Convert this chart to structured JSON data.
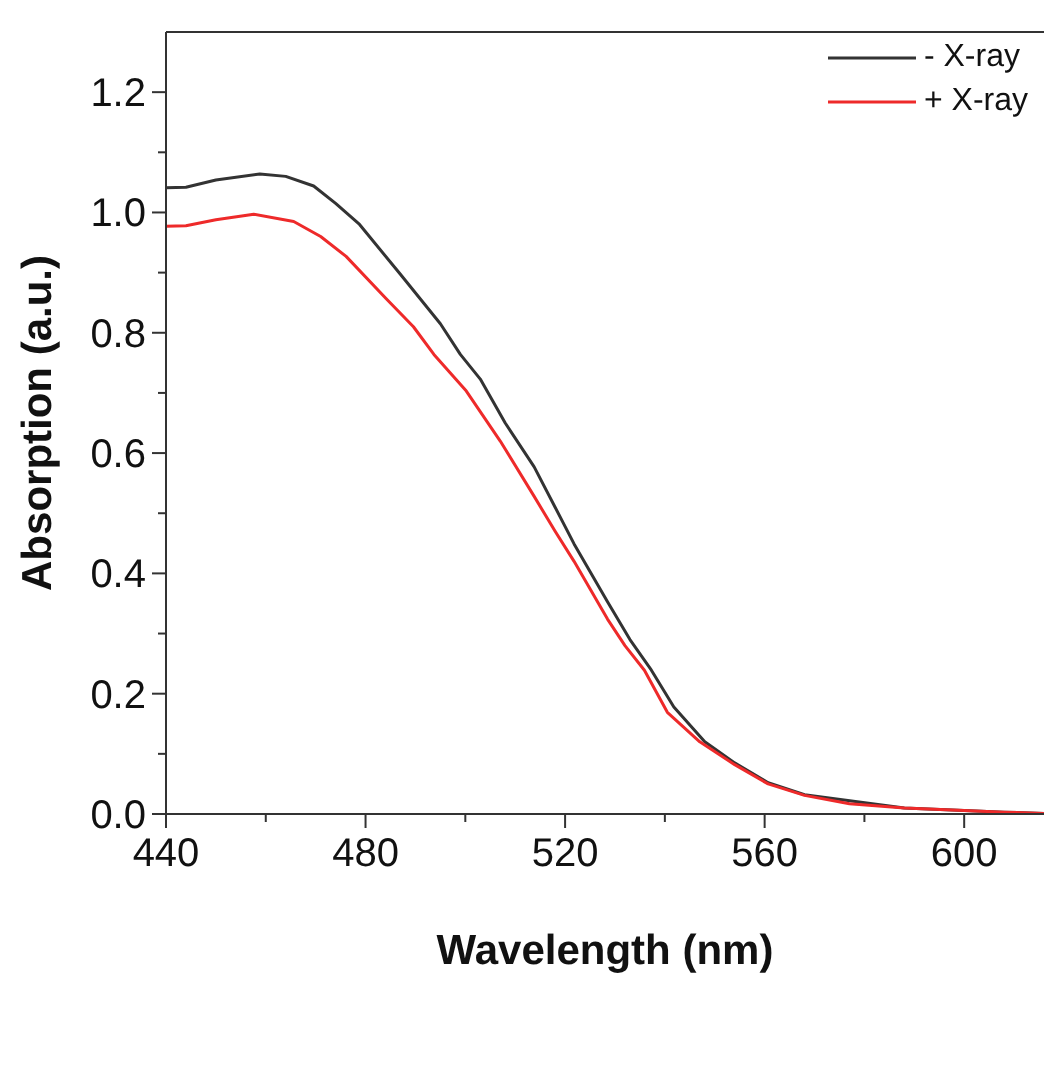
{
  "chart_data": {
    "type": "line",
    "xlabel": "Wavelength (nm)",
    "ylabel": "Absorption (a.u.)",
    "xlim": [
      440,
      616
    ],
    "ylim": [
      0,
      1.3
    ],
    "xticks": [
      440,
      {
        "value": 460,
        "label": null
      },
      480,
      {
        "value": 500,
        "label": null
      },
      520,
      {
        "value": 540,
        "label": null
      },
      560,
      {
        "value": 580,
        "label": null
      },
      600
    ],
    "yticks": [
      {
        "value": 0,
        "label": "0.0"
      },
      {
        "value": 0.1,
        "label": null
      },
      {
        "value": 0.2,
        "label": "0.2"
      },
      {
        "value": 0.3,
        "label": null
      },
      {
        "value": 0.4,
        "label": "0.4"
      },
      {
        "value": 0.5,
        "label": null
      },
      {
        "value": 0.6,
        "label": "0.6"
      },
      {
        "value": 0.7,
        "label": null
      },
      {
        "value": 0.8,
        "label": "0.8"
      },
      {
        "value": 0.9,
        "label": null
      },
      {
        "value": 1.0,
        "label": "1.0"
      },
      {
        "value": 1.1,
        "label": null
      },
      {
        "value": 1.2,
        "label": "1.2"
      }
    ],
    "grid": false,
    "legend": "top right",
    "marker": "none",
    "line_style": "solid",
    "series": [
      {
        "name": "- X-ray",
        "color": "#333333",
        "x": [
          440,
          444,
          450,
          458.8,
          464,
          469.6,
          474,
          478.8,
          486.9,
          495,
          499,
          503,
          508,
          513.8,
          518,
          521.8,
          528.5,
          533,
          537.3,
          541.8,
          548,
          554,
          560.7,
          568,
          588,
          600,
          608,
          616
        ],
        "values": [
          1.041,
          1.042,
          1.054,
          1.064,
          1.06,
          1.044,
          1.015,
          0.98,
          0.898,
          0.815,
          0.764,
          0.723,
          0.65,
          0.577,
          0.51,
          0.449,
          0.353,
          0.29,
          0.239,
          0.178,
          0.12,
          0.085,
          0.052,
          0.032,
          0.01,
          0.006,
          0.003,
          0.001
        ]
      },
      {
        "name": "+ X-ray",
        "color": "#ee2a2a",
        "x": [
          440,
          444,
          450,
          457.6,
          465.6,
          471,
          476.1,
          484.1,
          489.6,
          493.7,
          500.2,
          507,
          513.8,
          518,
          521.8,
          528.5,
          532,
          535.9,
          540.5,
          547,
          554,
          560.7,
          568,
          577,
          588,
          600,
          608,
          616
        ],
        "values": [
          0.977,
          0.978,
          0.988,
          0.997,
          0.985,
          0.96,
          0.927,
          0.857,
          0.81,
          0.764,
          0.703,
          0.62,
          0.528,
          0.47,
          0.42,
          0.324,
          0.28,
          0.239,
          0.169,
          0.12,
          0.082,
          0.05,
          0.031,
          0.017,
          0.01,
          0.006,
          0.003,
          0.001
        ]
      }
    ]
  }
}
